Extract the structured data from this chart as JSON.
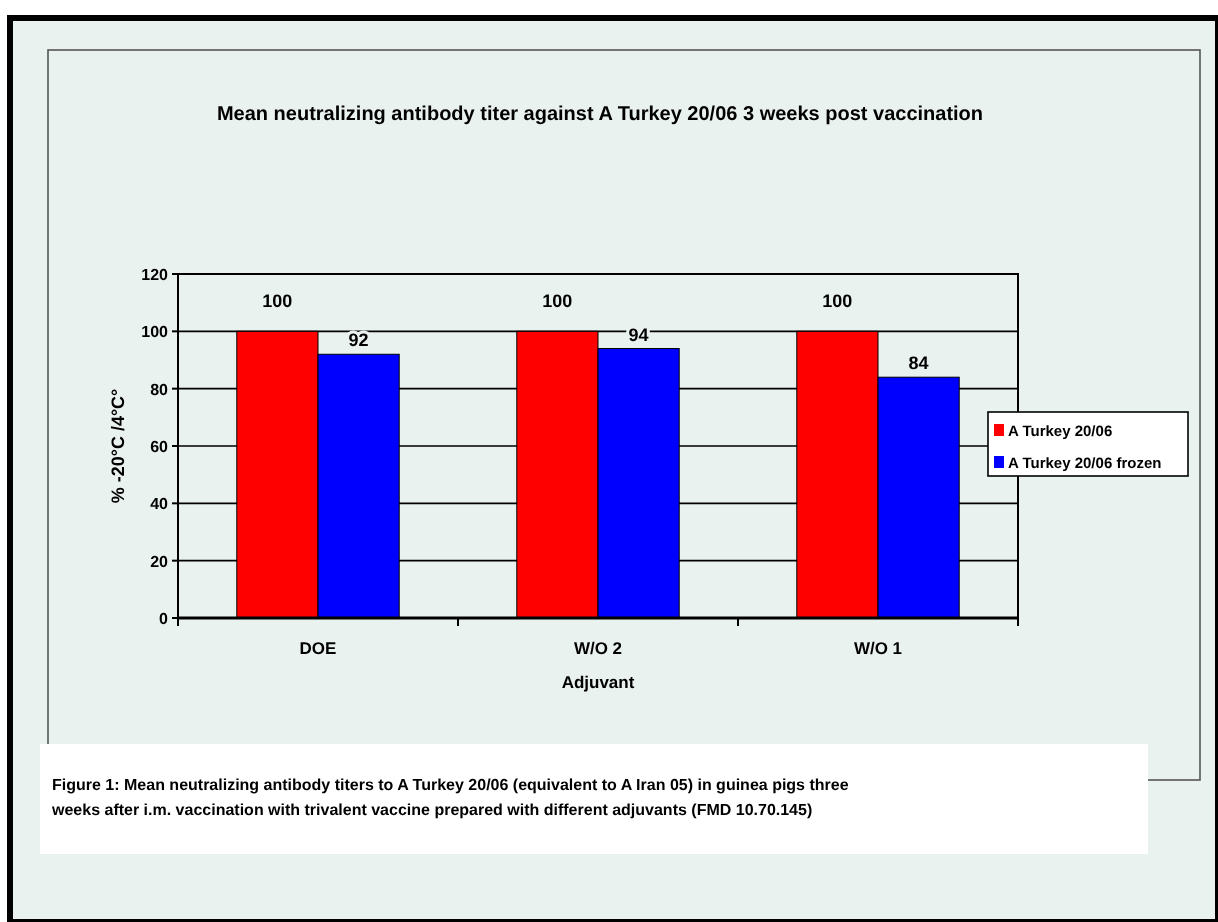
{
  "chart_data": {
    "type": "bar",
    "title": "Mean neutralizing antibody titer against A Turkey 20/06 3 weeks post  vaccination",
    "xlabel": "Adjuvant",
    "ylabel": "% -20°C /4°C°",
    "categories": [
      "DOE",
      "W/O 2",
      "W/O 1"
    ],
    "series": [
      {
        "name": "A Turkey 20/06",
        "color": "#ff0000",
        "values": [
          100,
          100,
          100
        ]
      },
      {
        "name": "A Turkey 20/06 frozen",
        "color": "#0000ff",
        "values": [
          92,
          94,
          84
        ]
      }
    ],
    "ylim": [
      0,
      120
    ],
    "yticks": [
      0,
      20,
      40,
      60,
      80,
      100,
      120
    ],
    "grid": "y",
    "legend": "right",
    "data_labels": true,
    "annotations": [
      "Figure 1:  Mean neutralizing antibody titers to A Turkey 20/06 (equivalent to A Iran 05) in guinea pigs three weeks after i.m. vaccination with trivalent vaccine prepared with different adjuvants (FMD 10.70.145)"
    ]
  }
}
